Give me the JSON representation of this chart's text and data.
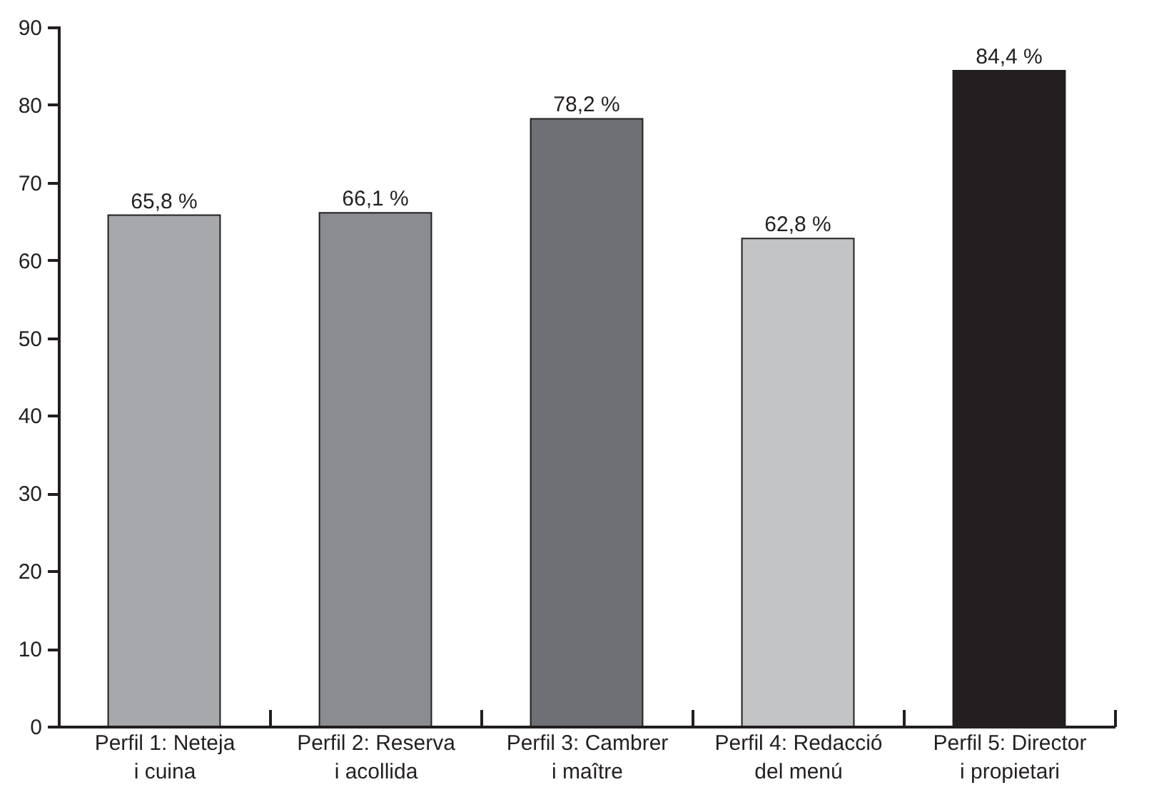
{
  "chart_data": {
    "type": "bar",
    "categories": [
      "Perfil 1: Neteja\ni cuina",
      "Perfil 2: Reserva\ni acollida",
      "Perfil 3: Cambrer\ni maître",
      "Perfil 4: Redacció\ndel menú",
      "Perfil 5: Director\ni propietari"
    ],
    "values": [
      65.8,
      66.1,
      78.2,
      62.8,
      84.4
    ],
    "value_labels": [
      "65,8 %",
      "66,1 %",
      "78,2 %",
      "62,8 %",
      "84,4 %"
    ],
    "colors": [
      "#a7a8ac",
      "#8b8c90",
      "#6f7075",
      "#c2c3c5",
      "#231f20"
    ],
    "ylim": [
      0,
      90
    ],
    "yticks": [
      0,
      10,
      20,
      30,
      40,
      50,
      60,
      70,
      80,
      90
    ],
    "grid": false
  }
}
